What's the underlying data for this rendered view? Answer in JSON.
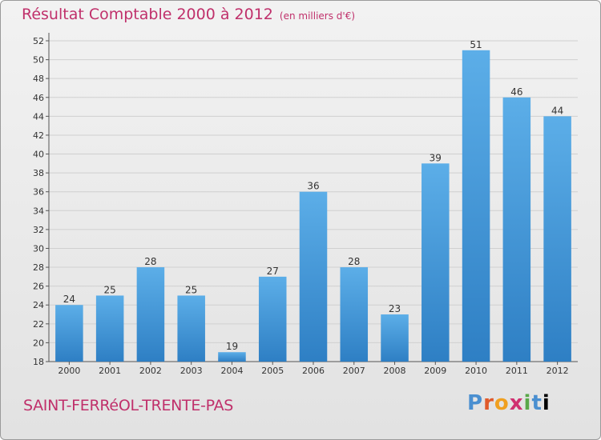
{
  "title": "Résultat Comptable 2000 à 2012",
  "subtitle": "(en milliers d'€)",
  "commune": "SAINT-FERRéOL-TRENTE-PAS",
  "logo": {
    "letters": [
      "P",
      "r",
      "o",
      "x",
      "i",
      "t",
      "i"
    ]
  },
  "colors": {
    "bar": "#3b8fd6",
    "bar_light": "#5caee8",
    "title": "#c0306b",
    "grid": "#d0d0d0"
  },
  "chart_data": {
    "type": "bar",
    "title": "Résultat Comptable 2000 à 2012",
    "subtitle": "(en milliers d'€)",
    "categories": [
      "2000",
      "2001",
      "2002",
      "2003",
      "2004",
      "2005",
      "2006",
      "2007",
      "2008",
      "2009",
      "2010",
      "2011",
      "2012"
    ],
    "values": [
      24,
      25,
      28,
      25,
      19,
      27,
      36,
      28,
      23,
      39,
      51,
      46,
      44
    ],
    "ylim": [
      18,
      52
    ],
    "yticks": [
      18,
      20,
      22,
      24,
      26,
      28,
      30,
      32,
      34,
      36,
      38,
      40,
      42,
      44,
      46,
      48,
      50,
      52
    ],
    "xlabel": "",
    "ylabel": "",
    "grid": true
  }
}
